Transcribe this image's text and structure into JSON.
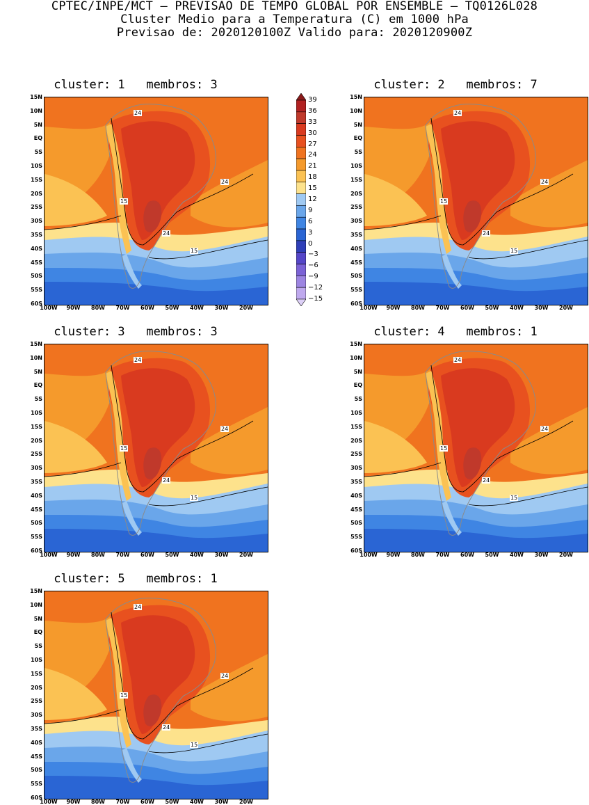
{
  "header": {
    "line1": "CPTEC/INPE/MCT – PREVISAO DE TEMPO GLOBAL POR ENSEMBLE – TQ0126L028",
    "line2": "Cluster Medio para a Temperatura (C) em 1000 hPa",
    "line3": "Previsao de: 2020120100Z   Valido para: 2020120900Z"
  },
  "colorbar": {
    "levels": [
      "39",
      "36",
      "33",
      "30",
      "27",
      "24",
      "21",
      "18",
      "15",
      "12",
      "9",
      "6",
      "3",
      "0",
      "−3",
      "−6",
      "−9",
      "−12",
      "−15"
    ],
    "colors": [
      "#8b1a1a",
      "#b22222",
      "#c0392b",
      "#d93a1f",
      "#e8511f",
      "#f0731f",
      "#f59a2c",
      "#fbc253",
      "#fde28c",
      "#9fc9f2",
      "#6aa6ea",
      "#3f85e3",
      "#2a65d4",
      "#2f3fb8",
      "#5546c8",
      "#7b62d6",
      "#9d85e2",
      "#bfa9ee",
      "#ddd0f7"
    ]
  },
  "axes": {
    "lat_ticks": [
      "15N",
      "10N",
      "5N",
      "EQ",
      "5S",
      "10S",
      "15S",
      "20S",
      "25S",
      "30S",
      "35S",
      "40S",
      "45S",
      "50S",
      "55S",
      "60S"
    ],
    "lon_ticks": [
      "100W",
      "90W",
      "80W",
      "70W",
      "60W",
      "50W",
      "40W",
      "30W",
      "20W"
    ]
  },
  "panels": [
    {
      "title": "cluster: 1   membros: 3",
      "label_24a": "24",
      "label_24b": "24",
      "label_24c": "24",
      "label_15a": "15",
      "label_15b": "15"
    },
    {
      "title": "cluster: 2   membros: 7",
      "label_24a": "24",
      "label_24b": "24",
      "label_24c": "24",
      "label_15a": "15",
      "label_15b": "15"
    },
    {
      "title": "cluster: 3   membros: 3",
      "label_24a": "24",
      "label_24b": "24",
      "label_24c": "24",
      "label_15a": "15",
      "label_15b": "15"
    },
    {
      "title": "cluster: 4   membros: 1",
      "label_24a": "24",
      "label_24b": "24",
      "label_24c": "24",
      "label_15a": "15",
      "label_15b": "15"
    },
    {
      "title": "cluster: 5   membros: 1",
      "label_24a": "24",
      "label_24b": "24",
      "label_24c": "24",
      "label_15a": "15",
      "label_15b": "15"
    }
  ]
}
